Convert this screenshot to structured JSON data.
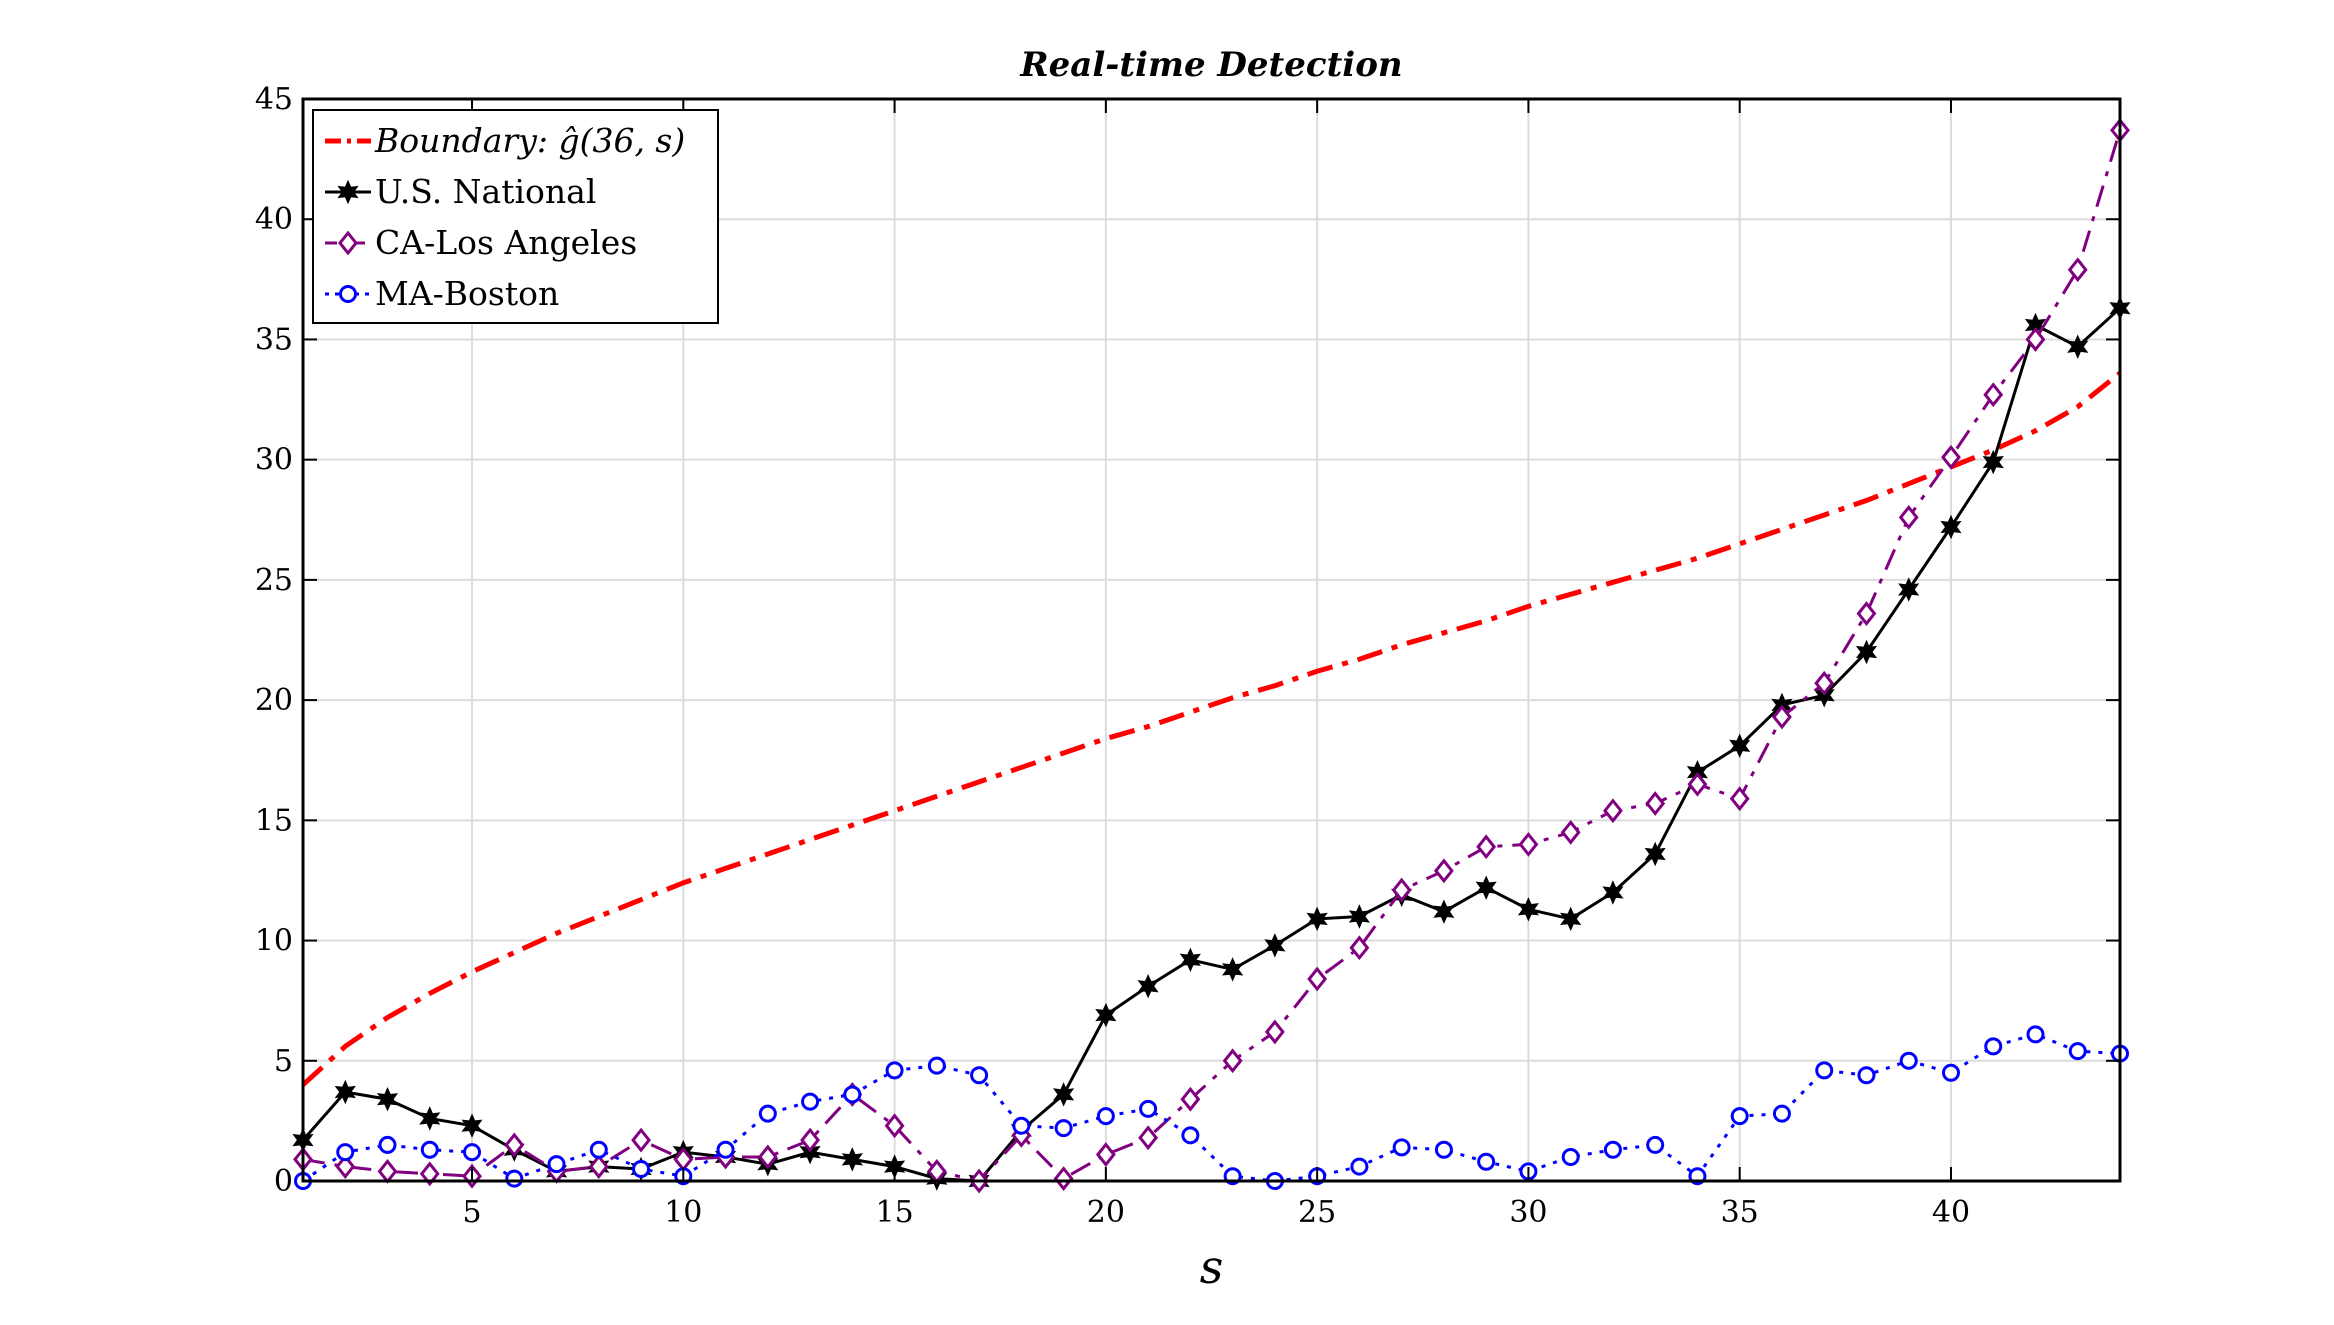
{
  "chart_data": {
    "type": "line",
    "title": "Real-time Detection",
    "xlabel": "s",
    "ylabel": "",
    "xlim": [
      1,
      44
    ],
    "ylim": [
      0,
      45
    ],
    "xticks": [
      5,
      10,
      15,
      20,
      25,
      30,
      35,
      40
    ],
    "yticks": [
      0,
      5,
      10,
      15,
      20,
      25,
      30,
      35,
      40,
      45
    ],
    "grid": true,
    "legend_position": "top-left",
    "boundary": {
      "name": "Boundary: ĝ(36, s)",
      "color": "#ff0000",
      "style": "dash-dot",
      "x": [
        1,
        2,
        3,
        4,
        5,
        6,
        7,
        8,
        9,
        10,
        11,
        12,
        13,
        14,
        15,
        16,
        17,
        18,
        19,
        20,
        21,
        22,
        23,
        24,
        25,
        26,
        27,
        28,
        29,
        30,
        31,
        32,
        33,
        34,
        35,
        36,
        37,
        38,
        39,
        40,
        41,
        42,
        43,
        44
      ],
      "values": [
        4.0,
        5.6,
        6.8,
        7.8,
        8.7,
        9.5,
        10.3,
        11.0,
        11.7,
        12.4,
        13.0,
        13.6,
        14.2,
        14.8,
        15.4,
        16.0,
        16.6,
        17.2,
        17.8,
        18.4,
        18.9,
        19.5,
        20.1,
        20.6,
        21.2,
        21.7,
        22.3,
        22.8,
        23.3,
        23.9,
        24.4,
        24.9,
        25.4,
        25.9,
        26.5,
        27.1,
        27.7,
        28.3,
        29.0,
        29.7,
        30.4,
        31.2,
        32.2,
        33.6
      ]
    },
    "series": [
      {
        "name": "U.S. National",
        "color": "#000000",
        "style": "solid",
        "marker": "star",
        "x": [
          1,
          2,
          3,
          4,
          5,
          6,
          7,
          8,
          9,
          10,
          11,
          12,
          13,
          14,
          15,
          16,
          17,
          18,
          19,
          20,
          21,
          22,
          23,
          24,
          25,
          26,
          27,
          28,
          29,
          30,
          31,
          32,
          33,
          34,
          35,
          36,
          37,
          38,
          39,
          40,
          41,
          42,
          43,
          44
        ],
        "values": [
          1.7,
          3.7,
          3.4,
          2.6,
          2.3,
          1.3,
          0.4,
          0.6,
          0.5,
          1.2,
          1.0,
          0.7,
          1.2,
          0.9,
          0.6,
          0.1,
          0.0,
          2.1,
          3.6,
          6.9,
          8.1,
          9.2,
          8.8,
          9.8,
          10.9,
          11.0,
          11.9,
          11.2,
          12.2,
          11.3,
          10.9,
          12.0,
          13.6,
          17.0,
          18.1,
          19.8,
          20.2,
          22.0,
          24.6,
          27.2,
          29.9,
          35.6,
          34.7,
          36.3
        ]
      },
      {
        "name": "CA-Los Angeles",
        "color": "#800080",
        "style": "dash-dot",
        "marker": "diamond",
        "x": [
          1,
          2,
          3,
          4,
          5,
          6,
          7,
          8,
          9,
          10,
          11,
          12,
          13,
          14,
          15,
          16,
          17,
          18,
          19,
          20,
          21,
          22,
          23,
          24,
          25,
          26,
          27,
          28,
          29,
          30,
          31,
          32,
          33,
          34,
          35,
          36,
          37,
          38,
          39,
          40,
          41,
          42,
          43,
          44
        ],
        "values": [
          0.9,
          0.6,
          0.4,
          0.3,
          0.2,
          1.5,
          0.4,
          0.6,
          1.7,
          0.9,
          1.0,
          1.0,
          1.7,
          3.6,
          2.3,
          0.4,
          0.0,
          1.9,
          0.1,
          1.1,
          1.8,
          3.4,
          5.0,
          6.2,
          8.4,
          9.7,
          12.1,
          12.9,
          13.9,
          14.0,
          14.5,
          15.4,
          15.7,
          16.5,
          15.9,
          19.3,
          20.7,
          23.6,
          27.6,
          30.1,
          32.7,
          35.0,
          37.9,
          43.7
        ]
      },
      {
        "name": "MA-Boston",
        "color": "#0000ff",
        "style": "dotted",
        "marker": "circle",
        "x": [
          1,
          2,
          3,
          4,
          5,
          6,
          7,
          8,
          9,
          10,
          11,
          12,
          13,
          14,
          15,
          16,
          17,
          18,
          19,
          20,
          21,
          22,
          23,
          24,
          25,
          26,
          27,
          28,
          29,
          30,
          31,
          32,
          33,
          34,
          35,
          36,
          37,
          38,
          39,
          40,
          41,
          42,
          43,
          44
        ],
        "values": [
          0.0,
          1.2,
          1.5,
          1.3,
          1.2,
          0.1,
          0.7,
          1.3,
          0.5,
          0.2,
          1.3,
          2.8,
          3.3,
          3.6,
          4.6,
          4.8,
          4.4,
          2.3,
          2.2,
          2.7,
          3.0,
          1.9,
          0.2,
          0.0,
          0.2,
          0.6,
          1.4,
          1.3,
          0.8,
          0.4,
          1.0,
          1.3,
          1.5,
          0.2,
          2.7,
          2.8,
          4.6,
          4.4,
          5.0,
          4.5,
          5.6,
          6.1,
          5.4,
          5.3
        ]
      }
    ]
  }
}
